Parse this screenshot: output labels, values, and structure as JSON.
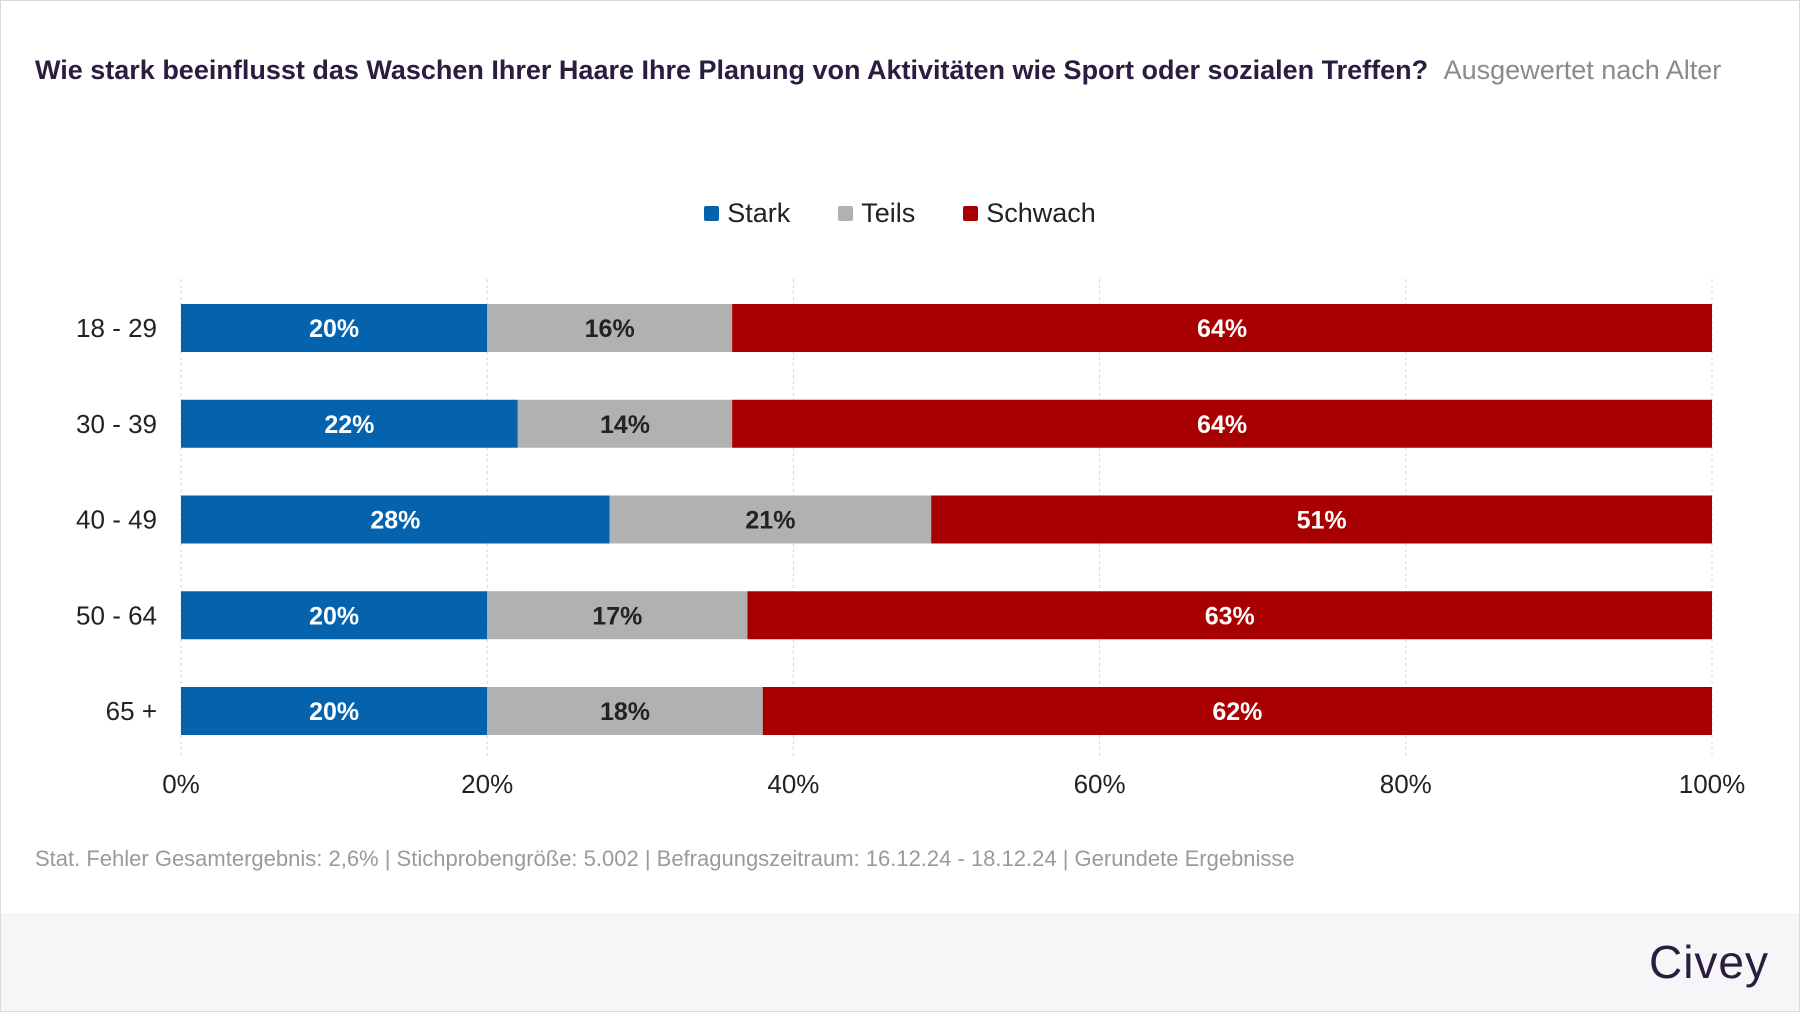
{
  "title": "Wie stark beeinflusst das Waschen Ihrer Haare Ihre Planung von Aktivitäten wie Sport oder sozialen Treffen?",
  "subtitle": "Ausgewertet nach Alter",
  "footer_note": "Stat. Fehler Gesamtergebnis: 2,6% | Stichprobengröße: 5.002 | Befragungszeitraum: 16.12.24 - 18.12.24 | Gerundete Ergebnisse",
  "brand": "Civey",
  "colors": {
    "stark": "#0563ad",
    "teils": "#b1b1b1",
    "schwach": "#a80000",
    "title": "#2b1d3f",
    "grid": "#d4d4d4"
  },
  "chart_data": {
    "type": "bar",
    "orientation": "horizontal",
    "stacked": true,
    "title": "Wie stark beeinflusst das Waschen Ihrer Haare Ihre Planung von Aktivitäten wie Sport oder sozialen Treffen?",
    "subtitle": "Ausgewertet nach Alter",
    "categories": [
      "18 - 29",
      "30 - 39",
      "40 - 49",
      "50 - 64",
      "65 +"
    ],
    "series": [
      {
        "name": "Stark",
        "color": "#0563ad",
        "label_color": "#ffffff",
        "values": [
          20,
          22,
          28,
          20,
          20
        ]
      },
      {
        "name": "Teils",
        "color": "#b1b1b1",
        "label_color": "#222222",
        "values": [
          16,
          14,
          21,
          17,
          18
        ]
      },
      {
        "name": "Schwach",
        "color": "#a80000",
        "label_color": "#ffffff",
        "values": [
          64,
          64,
          51,
          63,
          62
        ]
      }
    ],
    "xlim": [
      0,
      100
    ],
    "xticks": [
      "0%",
      "20%",
      "40%",
      "60%",
      "80%",
      "100%"
    ],
    "value_suffix": "%",
    "grid": true,
    "legend_position": "top-center"
  }
}
